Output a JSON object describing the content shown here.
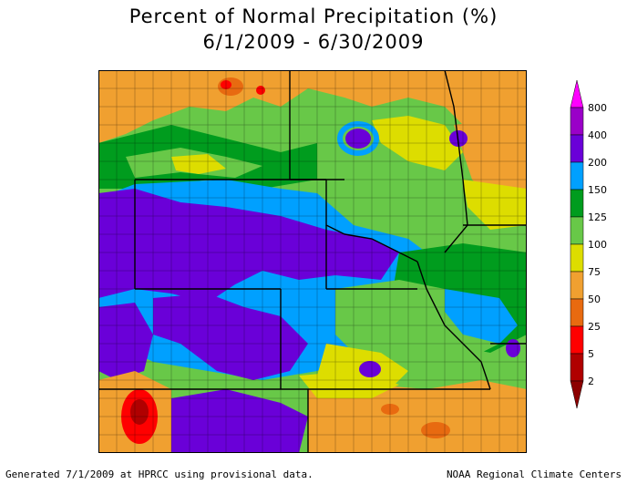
{
  "title_line1": "Percent of Normal Precipitation (%)",
  "title_line2": "6/1/2009 - 6/30/2009",
  "footer_left": "Generated 7/1/2009 at HPRCC using provisional data.",
  "footer_right": "NOAA Regional Climate Centers",
  "legend": {
    "breaks": [
      {
        "label": "800",
        "color": "#ff00ff"
      },
      {
        "label": "400",
        "color": "#9a00c8"
      },
      {
        "label": "200",
        "color": "#6a00d8"
      },
      {
        "label": "150",
        "color": "#00a0ff"
      },
      {
        "label": "125",
        "color": "#009c1e"
      },
      {
        "label": "100",
        "color": "#68c848"
      },
      {
        "label": "75",
        "color": "#dddd00"
      },
      {
        "label": "50",
        "color": "#f0a030"
      },
      {
        "label": "25",
        "color": "#e86a10"
      },
      {
        "label": "5",
        "color": "#ff0000"
      },
      {
        "label": "2",
        "color": "#b00000"
      }
    ],
    "bottom_color": "#8c0000"
  },
  "colors": {
    "orange": "#f0a030",
    "dark_orange": "#e86a10",
    "yellow": "#dddd00",
    "light_green": "#68c848",
    "green": "#009c1e",
    "blue": "#00a0ff",
    "purple": "#6a00d8",
    "dark_purple": "#9a00c8",
    "red": "#ff0000",
    "dark_red": "#b00000",
    "boundary": "#000000"
  }
}
